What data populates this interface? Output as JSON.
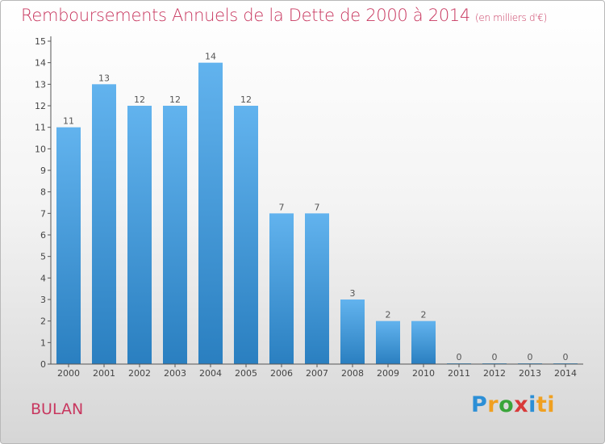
{
  "title": "Remboursements Annuels de la Dette de 2000 à 2014",
  "unit_note": "(en milliers d'€)",
  "city": "BULAN",
  "logo": [
    "P",
    "r",
    "o",
    "x",
    "i",
    "ti"
  ],
  "colors": {
    "title": "#c8375f",
    "bar_top": "#62b3ee",
    "bar_bottom": "#2a7fc0",
    "axis": "#555555"
  },
  "chart_data": {
    "type": "bar",
    "categories": [
      "2000",
      "2001",
      "2002",
      "2003",
      "2004",
      "2005",
      "2006",
      "2007",
      "2008",
      "2009",
      "2010",
      "2011",
      "2012",
      "2013",
      "2014"
    ],
    "values": [
      11,
      13,
      12,
      12,
      14,
      12,
      7,
      7,
      3,
      2,
      2,
      0,
      0,
      0,
      0
    ],
    "data_labels": [
      "11",
      "13",
      "12",
      "12",
      "14",
      "12",
      "7",
      "7",
      "3",
      "2",
      "2",
      "0",
      "0",
      "0",
      "0"
    ],
    "y_ticks": [
      0,
      1,
      2,
      3,
      4,
      5,
      6,
      7,
      8,
      9,
      10,
      11,
      12,
      13,
      14,
      15
    ],
    "ylim": [
      0,
      15
    ],
    "grid": false,
    "legend": "none"
  }
}
